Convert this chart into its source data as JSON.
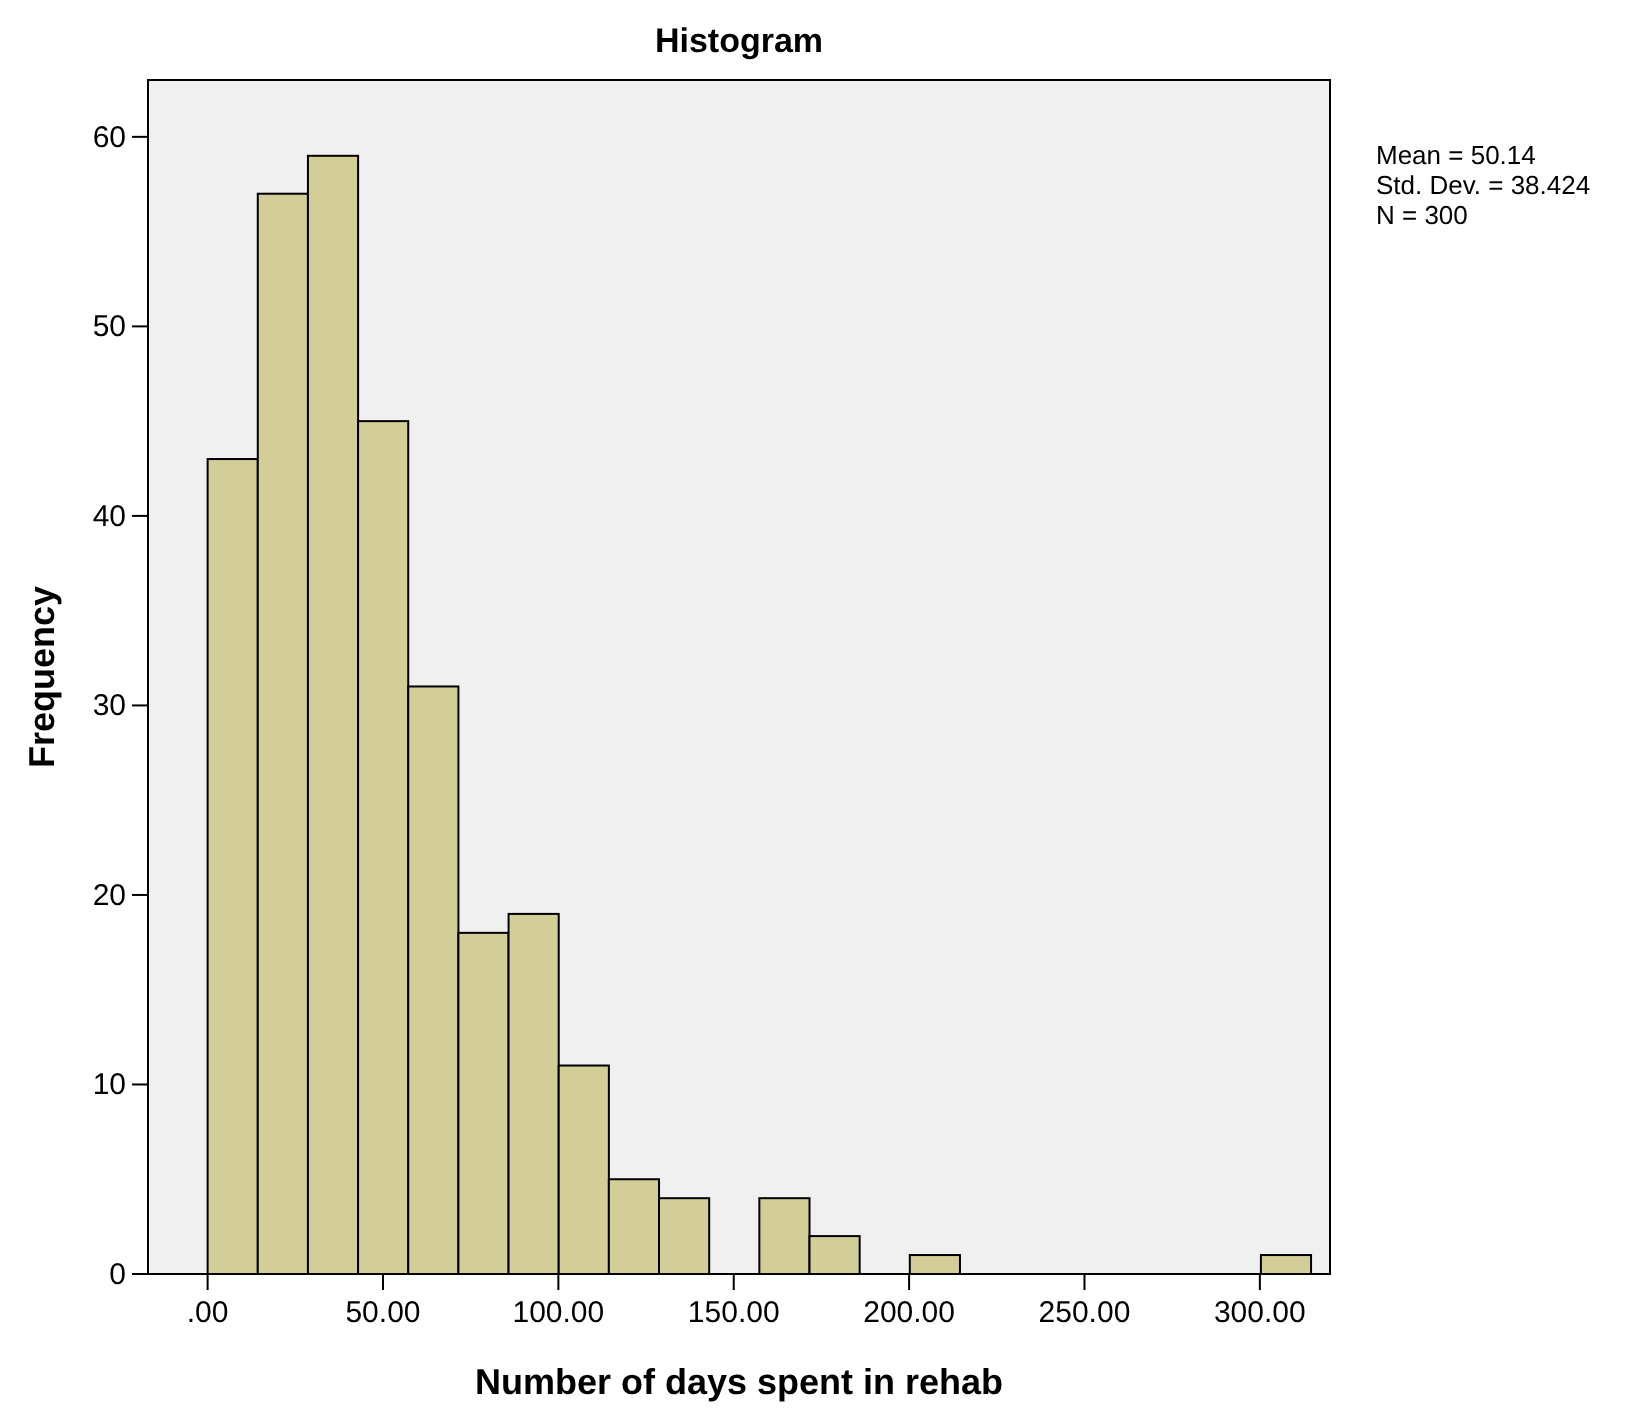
{
  "chart_data": {
    "type": "histogram",
    "title": "Histogram",
    "xlabel": "Number of days spent in rehab",
    "ylabel": "Frequency",
    "bins": [
      0,
      14.3,
      28.6,
      42.9,
      57.2,
      71.5,
      85.8,
      100.1,
      114.4,
      128.7,
      143,
      157.3,
      171.6,
      185.9,
      200.2,
      214.5,
      228.8,
      243.1,
      257.4,
      271.7,
      286,
      300.3,
      314.6
    ],
    "values": [
      43,
      57,
      59,
      45,
      31,
      18,
      19,
      11,
      5,
      4,
      0,
      4,
      2,
      0,
      1,
      0,
      0,
      0,
      0,
      0,
      0,
      1
    ],
    "color": "#d3ce97",
    "xlim": [
      -17,
      320
    ],
    "xticks": [
      {
        "value": 0,
        "label": ".00"
      },
      {
        "value": 50,
        "label": "50.00"
      },
      {
        "value": 100,
        "label": "100.00"
      },
      {
        "value": 150,
        "label": "150.00"
      },
      {
        "value": 200,
        "label": "200.00"
      },
      {
        "value": 250,
        "label": "250.00"
      },
      {
        "value": 300,
        "label": "300.00"
      }
    ],
    "ylim": [
      0,
      63
    ],
    "yticks": [
      0,
      10,
      20,
      30,
      40,
      50,
      60
    ],
    "annotations": [
      "Mean = 50.14",
      "Std. Dev. = 38.424",
      "N = 300"
    ]
  }
}
